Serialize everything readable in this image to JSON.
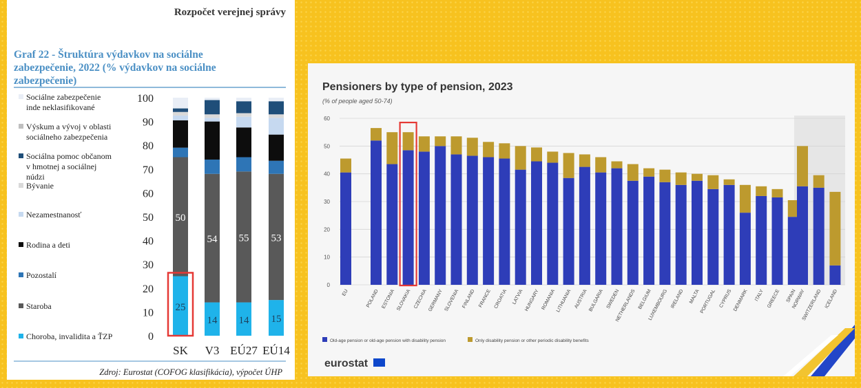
{
  "left_panel": {
    "header": "Rozpočet verejnej správy",
    "title_lines": [
      "Graf 22 - Štruktúra výdavkov na sociálne",
      "zabezpečenie, 2022 (% výdavkov na sociálne",
      "zabezpečenie)"
    ],
    "source": "Zdroj: Eurostat (COFOG klasifikácia), výpočet ÚHP"
  },
  "right_panel": {
    "brand": "eurostat"
  },
  "colors": {
    "background": "#f7c21f",
    "sickness": "#1fb3ea",
    "old_age": "#595959",
    "other": "#2e75b6",
    "family": "#0d0d0d",
    "unemployment": "#c6d9f0",
    "housing": "#d9d9d9",
    "social_exclusion": "#1f4e79",
    "rnd": "#bfbfbf",
    "not_classified": "#e9eef6",
    "old_age_pension": "#2e3db8",
    "disability": "#bd9a2e",
    "highlight": "#e53935"
  },
  "chart_data": [
    {
      "type": "bar",
      "stacked": true,
      "title": "Graf 22 - Štruktúra výdavkov na sociálne zabezpečenie, 2022 (% výdavkov na sociálne zabezpečenie)",
      "categories": [
        "SK",
        "V3",
        "EÚ27",
        "EÚ14"
      ],
      "ylim": [
        0,
        100
      ],
      "yticks": [
        "0",
        "10",
        "20",
        "30",
        "40",
        "50",
        "60",
        "70",
        "80",
        "90",
        "100"
      ],
      "series": [
        {
          "name": "Choroba, invalidita a ŤZP",
          "key": "sickness",
          "values": [
            25,
            14,
            14,
            15
          ],
          "labels": [
            "25",
            "14",
            "14",
            "15"
          ]
        },
        {
          "name": "Staroba",
          "key": "old_age",
          "values": [
            50,
            54,
            55,
            53
          ],
          "labels": [
            "50",
            "54",
            "55",
            "53"
          ]
        },
        {
          "name": "Pozostalí",
          "key": "other",
          "values": [
            4,
            6,
            6,
            5.5
          ],
          "labels": null
        },
        {
          "name": "Rodina a deti",
          "key": "family",
          "values": [
            11.5,
            16,
            12.5,
            11
          ],
          "labels": null
        },
        {
          "name": "Nezamestnanosť",
          "key": "unemployment",
          "values": [
            2,
            1.5,
            4.5,
            7
          ],
          "labels": null
        },
        {
          "name": "Bývanie",
          "key": "housing",
          "values": [
            1.5,
            1.5,
            1.5,
            1.5
          ],
          "labels": null
        },
        {
          "name": "Sociálna pomoc občanom v hmotnej a sociálnej núdzi",
          "key": "social_exclusion",
          "values": [
            1.5,
            6,
            5,
            5.5
          ],
          "labels": null
        },
        {
          "name": "Výskum a vývoj v oblasti sociálneho zabezpečenia",
          "key": "rnd",
          "values": [
            0,
            0,
            0,
            0
          ],
          "labels": null
        },
        {
          "name": "Sociálne zabezpečenie inde neklasifikované",
          "key": "not_classified",
          "values": [
            4.5,
            1,
            1.5,
            1.5
          ],
          "labels": null
        }
      ],
      "legend": [
        [
          "Sociálne zabezpečenie",
          "inde neklasifikované"
        ],
        [
          "Výskum a vývoj v oblasti",
          "sociálneho zabezpečenia"
        ],
        [
          "Sociálna pomoc občanom",
          "v hmotnej a sociálnej",
          "núdzi"
        ],
        [
          "Bývanie"
        ],
        [
          "Nezamestnanosť"
        ],
        [
          "Rodina a deti"
        ],
        [
          "Pozostalí"
        ],
        [
          "Staroba"
        ],
        [
          "Choroba, invalidita a ŤZP"
        ]
      ],
      "highlight": "SK bottom segment"
    },
    {
      "type": "bar",
      "stacked": true,
      "title": "Pensioners by type of pension, 2023",
      "subtitle": "(% of people aged 50-74)",
      "categories": [
        "EU",
        "POLAND",
        "ESTONIA",
        "SLOVAKIA",
        "CZECHIA",
        "GERMANY",
        "SLOVENIA",
        "FINLAND",
        "FRANCE",
        "CROATIA",
        "LATVIA",
        "HUNGARY",
        "ROMANIA",
        "LITHUANIA",
        "AUSTRIA",
        "BULGARIA",
        "SWEDEN",
        "NETHERLANDS",
        "BELGIUM",
        "LUXEMBOURG",
        "IRELAND",
        "MALTA",
        "PORTUGAL",
        "CYPRUS",
        "DENMARK",
        "ITALY",
        "GREECE",
        "SPAIN",
        "NORWAY",
        "SWITZERLAND",
        "ICELAND"
      ],
      "ylim": [
        0,
        60
      ],
      "yticks": [
        "0",
        "10",
        "20",
        "30",
        "40",
        "50",
        "60"
      ],
      "series": [
        {
          "name": "Old-age pension or old-age pension with disability pension",
          "key": "old_age_pension",
          "values": [
            40.5,
            52,
            43.5,
            48.5,
            48,
            50,
            47,
            46.5,
            46,
            45.5,
            41.5,
            44.5,
            44,
            38.5,
            42.5,
            40.5,
            42,
            37.5,
            39,
            37,
            36,
            37.5,
            34.5,
            36,
            26,
            32,
            31.5,
            24.5,
            35.5,
            35,
            7
          ]
        },
        {
          "name": "Only disability pension or other periodic disability benefits",
          "key": "disability",
          "values": [
            5,
            4.5,
            11.5,
            6.5,
            5.5,
            3.5,
            6.5,
            6.5,
            5.5,
            5.5,
            8.5,
            5,
            4,
            9,
            4.5,
            5.5,
            2.5,
            6,
            3,
            4.5,
            4.5,
            2.5,
            5,
            2,
            10,
            3.5,
            3,
            6,
            14.5,
            4.5,
            26.5
          ]
        }
      ],
      "highlight": "SLOVAKIA"
    }
  ]
}
